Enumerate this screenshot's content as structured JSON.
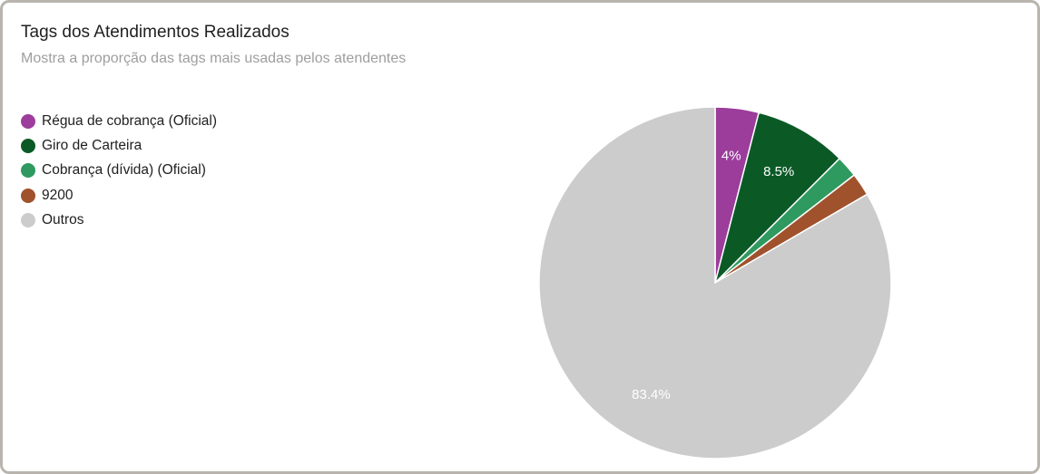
{
  "chart_data": {
    "type": "pie",
    "title": "Tags dos Atendimentos Realizados",
    "subtitle": "Mostra a proporção das tags mais usadas pelos atendentes",
    "legend_position": "left",
    "slices": [
      {
        "label": "Régua de cobrança (Oficial)",
        "value": 4.0,
        "color": "#9c3d9c",
        "data_label": "4%"
      },
      {
        "label": "Giro de Carteira",
        "value": 8.5,
        "color": "#0b5a26",
        "data_label": "8.5%"
      },
      {
        "label": "Cobrança (dívida) (Oficial)",
        "value": 2.0,
        "color": "#2e9a5f",
        "data_label": ""
      },
      {
        "label": "9200",
        "value": 2.1,
        "color": "#a0522d",
        "data_label": ""
      },
      {
        "label": "Outros",
        "value": 83.4,
        "color": "#cccccc",
        "data_label": "83.4%"
      }
    ]
  }
}
